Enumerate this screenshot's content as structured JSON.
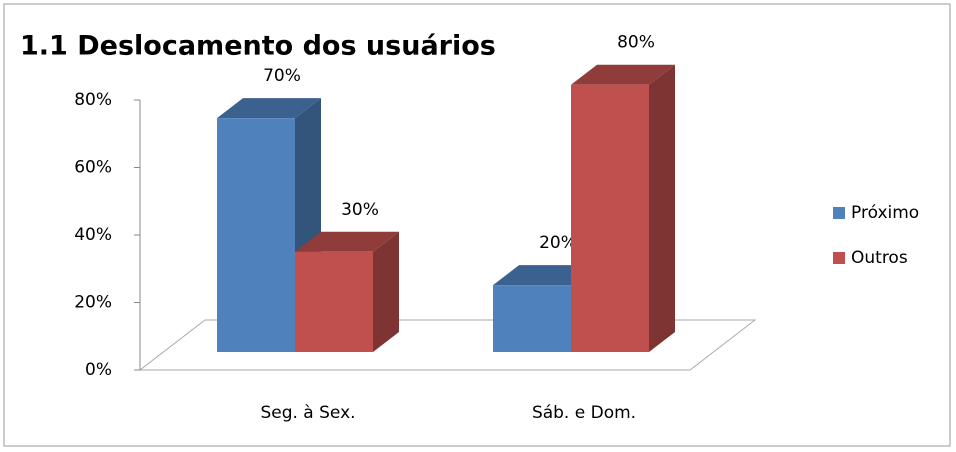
{
  "chart_data": {
    "type": "bar3d",
    "title": "1.1 Deslocamento dos usuários",
    "categories": [
      "Seg. à Sex.",
      "Sáb. e Dom."
    ],
    "series": [
      {
        "name": "Próximo",
        "color": "#4f81bd",
        "values": [
          70,
          20
        ],
        "value_labels": [
          "70%",
          "20%"
        ]
      },
      {
        "name": "Outros",
        "color": "#c0504d",
        "values": [
          30,
          80
        ],
        "value_labels": [
          "30%",
          "80%"
        ]
      }
    ],
    "ylim": [
      0,
      80
    ],
    "yticks": [
      {
        "value": 0,
        "label": "0%"
      },
      {
        "value": 20,
        "label": "20%"
      },
      {
        "value": 40,
        "label": "40%"
      },
      {
        "value": 60,
        "label": "60%"
      },
      {
        "value": 80,
        "label": "80%"
      }
    ],
    "legend": "right"
  }
}
